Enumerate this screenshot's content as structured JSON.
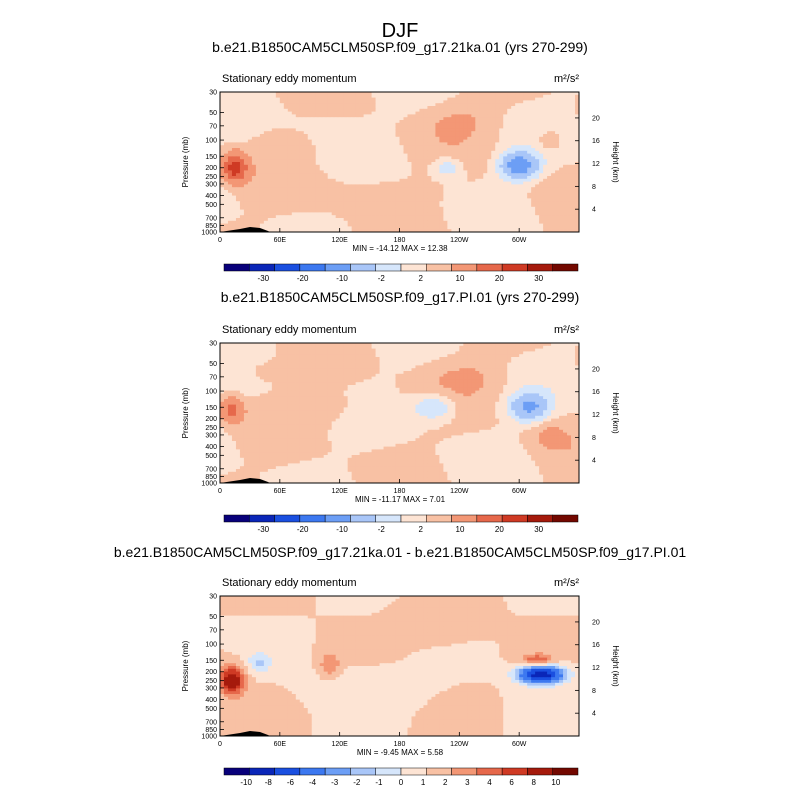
{
  "figure_title": "DJF",
  "colors": {
    "palette": [
      "#08007a",
      "#0a26b8",
      "#1a4fe0",
      "#3c78f0",
      "#6c9ef5",
      "#a9c6f8",
      "#d6e6fb",
      "#fde4d4",
      "#f8c1a4",
      "#f39775",
      "#e6684b",
      "#cf3a24",
      "#a51a0c",
      "#730800"
    ],
    "land": "#000000"
  },
  "chart_data": [
    {
      "type": "heatmap",
      "title": "b.e21.B1850CAM5CLM50SP.f09_g17.21ka.01 (yrs 270-299)",
      "subtitle": "Stationary eddy momentum",
      "units": "m²/s²",
      "ylabel": "Pressure (mb)",
      "ylabel_right": "Height (km)",
      "x_ticks": [
        "0",
        "60E",
        "120E",
        "180",
        "120W",
        "60W"
      ],
      "xlim": [
        0,
        360
      ],
      "x_tick_values": [
        0,
        60,
        120,
        180,
        240,
        300
      ],
      "y_ticks": [
        "30",
        "50",
        "70",
        "100",
        "150",
        "200",
        "250",
        "300",
        "400",
        "500",
        "700",
        "850",
        "1000"
      ],
      "y_tick_values": [
        30,
        50,
        70,
        100,
        150,
        200,
        250,
        300,
        400,
        500,
        700,
        850,
        1000
      ],
      "ylim": [
        30,
        1000
      ],
      "y_scale": "log",
      "y_right_ticks": [
        "20",
        "16",
        "12",
        "8",
        "4"
      ],
      "minmax_text": "MIN = -14.12  MAX =  12.38",
      "colorbar_labels": [
        "-30",
        "-20",
        "-10",
        "-2",
        "2",
        "10",
        "20",
        "30"
      ],
      "features": [
        {
          "lon": 15,
          "p": 200,
          "value": 12.38,
          "width": 12,
          "height": 0.35
        },
        {
          "lon": 300,
          "p": 190,
          "value": -14.12,
          "width": 18,
          "height": 0.32
        },
        {
          "lon": 228,
          "p": 200,
          "value": -4,
          "width": 15,
          "height": 0.28
        },
        {
          "lon": 240,
          "p": 60,
          "value": 2,
          "width": 40,
          "height": 0.5
        },
        {
          "lon": 150,
          "p": 400,
          "value": 1.5,
          "width": 50,
          "height": 0.5
        },
        {
          "lon": 60,
          "p": 100,
          "value": 1.5,
          "width": 30,
          "height": 0.35
        },
        {
          "lon": 330,
          "p": 100,
          "value": 3,
          "width": 12,
          "height": 0.25
        },
        {
          "lon": 110,
          "p": 70,
          "value": -1.5,
          "width": 40,
          "height": 0.4
        }
      ]
    },
    {
      "type": "heatmap",
      "title": "b.e21.B1850CAM5CLM50SP.f09_g17.PI.01 (yrs 270-299)",
      "subtitle": "Stationary eddy momentum",
      "units": "m²/s²",
      "ylabel": "Pressure (mb)",
      "ylabel_right": "Height (km)",
      "x_ticks": [
        "0",
        "60E",
        "120E",
        "180",
        "120W",
        "60W"
      ],
      "xlim": [
        0,
        360
      ],
      "x_tick_values": [
        0,
        60,
        120,
        180,
        240,
        300
      ],
      "y_ticks": [
        "30",
        "50",
        "70",
        "100",
        "150",
        "200",
        "250",
        "300",
        "400",
        "500",
        "700",
        "850",
        "1000"
      ],
      "y_tick_values": [
        30,
        50,
        70,
        100,
        150,
        200,
        250,
        300,
        400,
        500,
        700,
        850,
        1000
      ],
      "ylim": [
        30,
        1000
      ],
      "y_scale": "log",
      "y_right_ticks": [
        "20",
        "16",
        "12",
        "8",
        "4"
      ],
      "minmax_text": "MIN = -11.17  MAX =   7.01",
      "colorbar_labels": [
        "-30",
        "-20",
        "-10",
        "-2",
        "2",
        "10",
        "20",
        "30"
      ],
      "features": [
        {
          "lon": 12,
          "p": 160,
          "value": 7.01,
          "width": 11,
          "height": 0.3
        },
        {
          "lon": 310,
          "p": 150,
          "value": -11.17,
          "width": 18,
          "height": 0.32
        },
        {
          "lon": 215,
          "p": 150,
          "value": -5,
          "width": 22,
          "height": 0.35
        },
        {
          "lon": 250,
          "p": 70,
          "value": 2,
          "width": 40,
          "height": 0.5
        },
        {
          "lon": 110,
          "p": 150,
          "value": 1.5,
          "width": 45,
          "height": 0.45
        },
        {
          "lon": 40,
          "p": 60,
          "value": 1.5,
          "width": 30,
          "height": 0.35
        },
        {
          "lon": 330,
          "p": 300,
          "value": 2,
          "width": 20,
          "height": 0.4
        }
      ]
    },
    {
      "type": "heatmap",
      "title": "b.e21.B1850CAM5CLM50SP.f09_g17.21ka.01 - b.e21.B1850CAM5CLM50SP.f09_g17.PI.01",
      "subtitle": "Stationary eddy momentum",
      "units": "m²/s²",
      "ylabel": "Pressure (mb)",
      "ylabel_right": "Height (km)",
      "x_ticks": [
        "0",
        "60E",
        "120E",
        "180",
        "120W",
        "60W"
      ],
      "xlim": [
        0,
        360
      ],
      "x_tick_values": [
        0,
        60,
        120,
        180,
        240,
        300
      ],
      "y_ticks": [
        "30",
        "50",
        "70",
        "100",
        "150",
        "200",
        "250",
        "300",
        "400",
        "500",
        "700",
        "850",
        "1000"
      ],
      "y_tick_values": [
        30,
        50,
        70,
        100,
        150,
        200,
        250,
        300,
        400,
        500,
        700,
        850,
        1000
      ],
      "ylim": [
        30,
        1000
      ],
      "y_scale": "log",
      "y_right_ticks": [
        "20",
        "16",
        "12",
        "8",
        "4"
      ],
      "minmax_text": "MIN =  -9.45  MAX =   5.58",
      "colorbar_labels": [
        "-10",
        "-8",
        "-6",
        "-4",
        "-3",
        "-2",
        "-1",
        "0",
        "1",
        "2",
        "3",
        "4",
        "6",
        "8",
        "10"
      ],
      "features": [
        {
          "lon": 12,
          "p": 250,
          "value": 5.58,
          "width": 12,
          "height": 0.35
        },
        {
          "lon": 322,
          "p": 215,
          "value": -9.45,
          "width": 22,
          "height": 0.22
        },
        {
          "lon": 318,
          "p": 150,
          "value": 3,
          "width": 15,
          "height": 0.15
        },
        {
          "lon": 40,
          "p": 160,
          "value": -2,
          "width": 12,
          "height": 0.25
        },
        {
          "lon": 110,
          "p": 170,
          "value": 2,
          "width": 10,
          "height": 0.3
        },
        {
          "lon": 220,
          "p": 60,
          "value": 1,
          "width": 40,
          "height": 0.5
        },
        {
          "lon": 150,
          "p": 300,
          "value": -0.7,
          "width": 60,
          "height": 0.5
        }
      ]
    }
  ]
}
